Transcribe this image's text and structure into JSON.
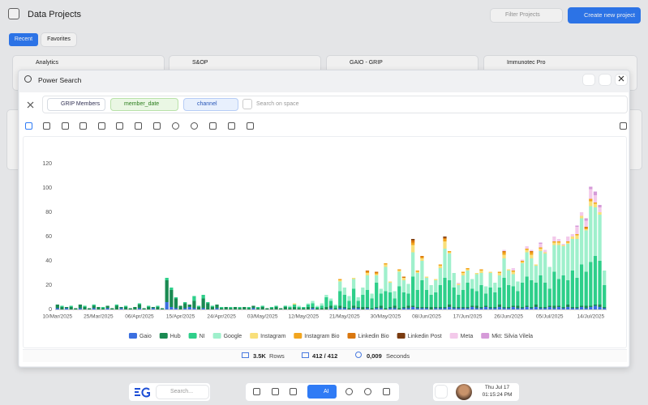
{
  "header": {
    "title": "Data Projects",
    "filter_placeholder": "Filter Projects",
    "create_button": "Create new project"
  },
  "tabs": [
    "Recent",
    "Favorites"
  ],
  "projects": [
    "Analytics",
    "S&OP",
    "GAIO - GRIP",
    "Immunotec Pro"
  ],
  "modal": {
    "title": "Power Search",
    "chips": [
      "GRIP Members",
      "member_date",
      "channel"
    ],
    "search_placeholder": "Search on space"
  },
  "stats": {
    "rows_value": "3.5K",
    "rows_label": "Rows",
    "count": "412 / 412",
    "time_value": "0,009",
    "time_label": "Seconds"
  },
  "dock": {
    "search_placeholder": "Search...",
    "ai_button": "AI",
    "date": "Thu Jul 17",
    "time": "01:15:24 PM"
  },
  "chart_data": {
    "type": "stacked-bar",
    "ylim": [
      0,
      120
    ],
    "yticks": [
      0,
      20,
      40,
      60,
      80,
      100,
      120
    ],
    "grid": false,
    "categories": [
      "10/Mar/2025",
      null,
      null,
      null,
      null,
      null,
      null,
      null,
      null,
      "25/Mar/2025",
      null,
      null,
      null,
      null,
      null,
      null,
      null,
      null,
      "06/Apr/2025",
      null,
      null,
      null,
      null,
      null,
      null,
      null,
      null,
      "15/Apr/2025",
      null,
      null,
      null,
      null,
      null,
      null,
      null,
      null,
      "24/Apr/2025",
      null,
      null,
      null,
      null,
      null,
      null,
      null,
      null,
      "03/May/2025",
      null,
      null,
      null,
      null,
      null,
      null,
      null,
      null,
      "12/May/2025",
      null,
      null,
      null,
      null,
      null,
      null,
      null,
      null,
      "21/May/2025",
      null,
      null,
      null,
      null,
      null,
      null,
      null,
      null,
      "30/May/2025",
      null,
      null,
      null,
      null,
      null,
      null,
      null,
      null,
      "08/Jun/2025",
      null,
      null,
      null,
      null,
      null,
      null,
      null,
      null,
      "17/Jun/2025",
      null,
      null,
      null,
      null,
      null,
      null,
      null,
      null,
      "26/Jun/2025",
      null,
      null,
      null,
      null,
      null,
      null,
      null,
      null,
      "05/Jul/2025",
      null,
      null,
      null,
      null,
      null,
      null,
      null,
      null,
      "14/Jul/2025",
      null,
      null,
      null
    ],
    "series": [
      {
        "name": "Gaio",
        "color": "#3b6fe0",
        "values": [
          1,
          0,
          1,
          0,
          0,
          1,
          0,
          0,
          1,
          0,
          0,
          1,
          0,
          0,
          1,
          0,
          0,
          0,
          1,
          0,
          0,
          1,
          0,
          0,
          6,
          2,
          1,
          0,
          1,
          2,
          1,
          0,
          1,
          0,
          0,
          1,
          0,
          0,
          0,
          0,
          0,
          0,
          0,
          1,
          0,
          0,
          0,
          0,
          0,
          0,
          0,
          0,
          0,
          0,
          0,
          0,
          1,
          0,
          0,
          0,
          1,
          0,
          1,
          1,
          0,
          1,
          1,
          0,
          1,
          0,
          1,
          1,
          0,
          1,
          1,
          0,
          1,
          1,
          2,
          1,
          1,
          1,
          0,
          1,
          1,
          1,
          2,
          1,
          1,
          1,
          1,
          2,
          1,
          1,
          2,
          1,
          1,
          2,
          1,
          1,
          2,
          1,
          1,
          2,
          1,
          2,
          1,
          1,
          2,
          1,
          2,
          1,
          2,
          1,
          1,
          2,
          1,
          2,
          3,
          2,
          1
        ]
      },
      {
        "name": "Hub",
        "color": "#1a8a52",
        "values": [
          3,
          2,
          1,
          2,
          1,
          3,
          2,
          1,
          2,
          2,
          1,
          2,
          1,
          3,
          1,
          2,
          1,
          2,
          3,
          1,
          2,
          1,
          2,
          1,
          18,
          14,
          8,
          3,
          4,
          2,
          6,
          2,
          8,
          5,
          2,
          3,
          1,
          2,
          1,
          2,
          1,
          2,
          1,
          2,
          1,
          2,
          1,
          1,
          2,
          1,
          2,
          1,
          2,
          1,
          1,
          2,
          1,
          1,
          1,
          2,
          2,
          1,
          2,
          1,
          1,
          2,
          1,
          2,
          1,
          1,
          1,
          2,
          1,
          1,
          2,
          1,
          1,
          2,
          1,
          1,
          1,
          1,
          2,
          1,
          1,
          1,
          2,
          1,
          1,
          1,
          1,
          1,
          2,
          1,
          1,
          1,
          1,
          2,
          1,
          1,
          1,
          2,
          1,
          1,
          1,
          2,
          1,
          1,
          1,
          2,
          1,
          1,
          2,
          1,
          1,
          1,
          2,
          1,
          1,
          2,
          1
        ]
      },
      {
        "name": "NI",
        "color": "#2ecf8a",
        "values": [
          0,
          1,
          0,
          1,
          0,
          0,
          1,
          0,
          1,
          0,
          1,
          0,
          0,
          1,
          0,
          1,
          0,
          0,
          1,
          0,
          1,
          0,
          1,
          0,
          2,
          2,
          1,
          0,
          1,
          0,
          4,
          1,
          3,
          1,
          1,
          0,
          1,
          0,
          1,
          0,
          1,
          0,
          1,
          0,
          1,
          1,
          0,
          1,
          1,
          0,
          1,
          1,
          2,
          1,
          1,
          2,
          3,
          1,
          2,
          8,
          4,
          2,
          12,
          10,
          6,
          14,
          5,
          10,
          14,
          8,
          20,
          10,
          14,
          12,
          6,
          18,
          12,
          10,
          24,
          14,
          22,
          14,
          10,
          12,
          18,
          24,
          20,
          16,
          10,
          14,
          20,
          14,
          12,
          18,
          10,
          16,
          12,
          14,
          24,
          18,
          16,
          12,
          20,
          24,
          22,
          18,
          26,
          20,
          14,
          28,
          22,
          26,
          20,
          30,
          24,
          34,
          28,
          36,
          40,
          36,
          18
        ]
      },
      {
        "name": "Google",
        "color": "#9ff0cc",
        "values": [
          0,
          0,
          0,
          0,
          0,
          0,
          0,
          0,
          0,
          0,
          0,
          0,
          0,
          0,
          0,
          0,
          0,
          0,
          0,
          0,
          0,
          0,
          0,
          0,
          0,
          0,
          0,
          0,
          0,
          0,
          0,
          0,
          0,
          0,
          0,
          0,
          0,
          0,
          0,
          0,
          0,
          0,
          0,
          0,
          0,
          0,
          0,
          0,
          0,
          0,
          0,
          1,
          0,
          1,
          0,
          1,
          2,
          1,
          2,
          2,
          2,
          1,
          8,
          6,
          4,
          8,
          3,
          6,
          12,
          4,
          6,
          4,
          20,
          8,
          6,
          12,
          10,
          8,
          20,
          14,
          16,
          10,
          8,
          10,
          14,
          24,
          22,
          12,
          8,
          12,
          10,
          8,
          14,
          10,
          6,
          12,
          8,
          10,
          16,
          12,
          10,
          8,
          16,
          20,
          18,
          14,
          20,
          24,
          18,
          22,
          28,
          24,
          30,
          26,
          32,
          38,
          34,
          46,
          40,
          38,
          12
        ]
      },
      {
        "name": "Instagram",
        "color": "#f8df7a",
        "values": [
          0,
          0,
          0,
          0,
          0,
          0,
          0,
          0,
          0,
          0,
          0,
          0,
          0,
          0,
          0,
          0,
          0,
          0,
          0,
          0,
          0,
          0,
          0,
          0,
          0,
          0,
          0,
          0,
          0,
          0,
          0,
          0,
          0,
          0,
          0,
          0,
          0,
          0,
          0,
          0,
          0,
          0,
          0,
          0,
          0,
          0,
          0,
          0,
          0,
          0,
          0,
          0,
          1,
          0,
          0,
          0,
          0,
          0,
          0,
          0,
          0,
          0,
          1,
          0,
          0,
          1,
          0,
          0,
          2,
          0,
          1,
          0,
          2,
          1,
          0,
          1,
          2,
          0,
          6,
          1,
          2,
          1,
          0,
          1,
          2,
          6,
          1,
          0,
          1,
          2,
          1,
          0,
          1,
          2,
          0,
          1,
          0,
          2,
          3,
          1,
          2,
          0,
          1,
          2,
          3,
          1,
          2,
          1,
          0,
          2,
          2,
          1,
          1,
          2,
          3,
          2,
          1,
          4,
          3,
          2,
          0
        ]
      },
      {
        "name": "Instagram Bio",
        "color": "#f2a51e",
        "values": [
          0,
          0,
          0,
          0,
          0,
          0,
          0,
          0,
          0,
          0,
          0,
          0,
          0,
          0,
          0,
          0,
          0,
          0,
          0,
          0,
          0,
          0,
          0,
          0,
          0,
          0,
          0,
          0,
          0,
          0,
          0,
          0,
          0,
          0,
          0,
          0,
          0,
          0,
          0,
          0,
          0,
          0,
          0,
          0,
          0,
          0,
          0,
          0,
          0,
          0,
          0,
          0,
          0,
          0,
          0,
          0,
          0,
          0,
          0,
          0,
          0,
          0,
          1,
          0,
          0,
          0,
          0,
          0,
          1,
          0,
          1,
          0,
          1,
          0,
          0,
          1,
          0,
          0,
          2,
          1,
          1,
          0,
          0,
          0,
          1,
          2,
          1,
          0,
          0,
          1,
          1,
          0,
          0,
          1,
          0,
          0,
          0,
          1,
          2,
          0,
          1,
          0,
          1,
          1,
          2,
          0,
          1,
          0,
          0,
          1,
          1,
          0,
          1,
          0,
          1,
          0,
          1,
          2,
          1,
          0,
          0
        ]
      },
      {
        "name": "Linkedin Bio",
        "color": "#d9770f",
        "values": [
          0,
          0,
          0,
          0,
          0,
          0,
          0,
          0,
          0,
          0,
          0,
          0,
          0,
          0,
          0,
          0,
          0,
          0,
          0,
          0,
          0,
          0,
          0,
          0,
          0,
          0,
          0,
          0,
          0,
          0,
          0,
          0,
          0,
          0,
          0,
          0,
          0,
          0,
          0,
          0,
          0,
          0,
          0,
          0,
          0,
          0,
          0,
          0,
          0,
          0,
          0,
          0,
          0,
          0,
          0,
          0,
          0,
          0,
          0,
          0,
          0,
          0,
          0,
          0,
          0,
          0,
          0,
          0,
          1,
          0,
          1,
          0,
          0,
          0,
          0,
          0,
          1,
          0,
          2,
          0,
          1,
          0,
          0,
          0,
          0,
          1,
          0,
          0,
          0,
          0,
          0,
          0,
          0,
          0,
          0,
          0,
          0,
          0,
          1,
          0,
          0,
          0,
          0,
          0,
          1,
          0,
          0,
          0,
          0,
          0,
          0,
          0,
          0,
          0,
          0,
          0,
          1,
          0,
          0,
          0,
          0
        ]
      },
      {
        "name": "Linkedin Post",
        "color": "#7a3b10",
        "values": [
          0,
          0,
          0,
          0,
          0,
          0,
          0,
          0,
          0,
          0,
          0,
          0,
          0,
          0,
          0,
          0,
          0,
          0,
          0,
          0,
          0,
          0,
          0,
          0,
          0,
          0,
          0,
          0,
          0,
          0,
          0,
          0,
          0,
          0,
          0,
          0,
          0,
          0,
          0,
          0,
          0,
          0,
          0,
          0,
          0,
          0,
          0,
          0,
          0,
          0,
          0,
          0,
          0,
          0,
          0,
          0,
          0,
          0,
          0,
          0,
          0,
          0,
          0,
          0,
          0,
          0,
          0,
          0,
          0,
          0,
          0,
          0,
          0,
          0,
          0,
          0,
          0,
          0,
          1,
          0,
          0,
          0,
          0,
          0,
          0,
          1,
          0,
          0,
          0,
          0,
          0,
          0,
          0,
          0,
          0,
          0,
          0,
          0,
          0,
          0,
          0,
          0,
          0,
          0,
          0,
          0,
          0,
          0,
          0,
          0,
          0,
          0,
          0,
          0,
          0,
          0,
          0,
          0,
          0,
          0,
          0
        ]
      },
      {
        "name": "Meta",
        "color": "#f3c9ea",
        "values": [
          0,
          0,
          0,
          0,
          0,
          0,
          0,
          0,
          0,
          0,
          0,
          0,
          0,
          0,
          0,
          0,
          0,
          0,
          0,
          0,
          0,
          0,
          0,
          0,
          0,
          0,
          0,
          0,
          0,
          0,
          0,
          0,
          0,
          0,
          0,
          0,
          0,
          0,
          0,
          0,
          0,
          0,
          0,
          0,
          0,
          0,
          0,
          0,
          0,
          0,
          0,
          0,
          0,
          0,
          0,
          0,
          0,
          0,
          0,
          0,
          0,
          0,
          0,
          0,
          0,
          0,
          0,
          0,
          0,
          0,
          0,
          0,
          0,
          0,
          0,
          0,
          0,
          0,
          0,
          0,
          0,
          0,
          0,
          0,
          0,
          0,
          0,
          0,
          1,
          0,
          0,
          0,
          0,
          0,
          0,
          0,
          0,
          0,
          1,
          0,
          2,
          0,
          1,
          2,
          1,
          0,
          3,
          2,
          0,
          4,
          2,
          1,
          4,
          2,
          6,
          3,
          5,
          8,
          6,
          4,
          0
        ]
      },
      {
        "name": "Mkt: Silvia Vilela",
        "color": "#d59ad8",
        "values": [
          0,
          0,
          0,
          0,
          0,
          0,
          0,
          0,
          0,
          0,
          0,
          0,
          0,
          0,
          0,
          0,
          0,
          0,
          0,
          0,
          0,
          0,
          0,
          0,
          0,
          0,
          0,
          0,
          0,
          0,
          0,
          0,
          0,
          0,
          0,
          0,
          0,
          0,
          0,
          0,
          0,
          0,
          0,
          0,
          0,
          0,
          0,
          0,
          0,
          0,
          0,
          0,
          0,
          0,
          0,
          0,
          0,
          0,
          0,
          0,
          0,
          0,
          0,
          0,
          0,
          0,
          0,
          0,
          0,
          0,
          0,
          0,
          0,
          0,
          0,
          0,
          0,
          0,
          0,
          0,
          0,
          0,
          0,
          0,
          0,
          0,
          0,
          0,
          0,
          0,
          0,
          0,
          0,
          0,
          0,
          0,
          0,
          0,
          0,
          0,
          0,
          0,
          0,
          0,
          0,
          0,
          1,
          0,
          0,
          0,
          0,
          0,
          0,
          0,
          1,
          0,
          2,
          2,
          3,
          2,
          0
        ]
      }
    ]
  }
}
